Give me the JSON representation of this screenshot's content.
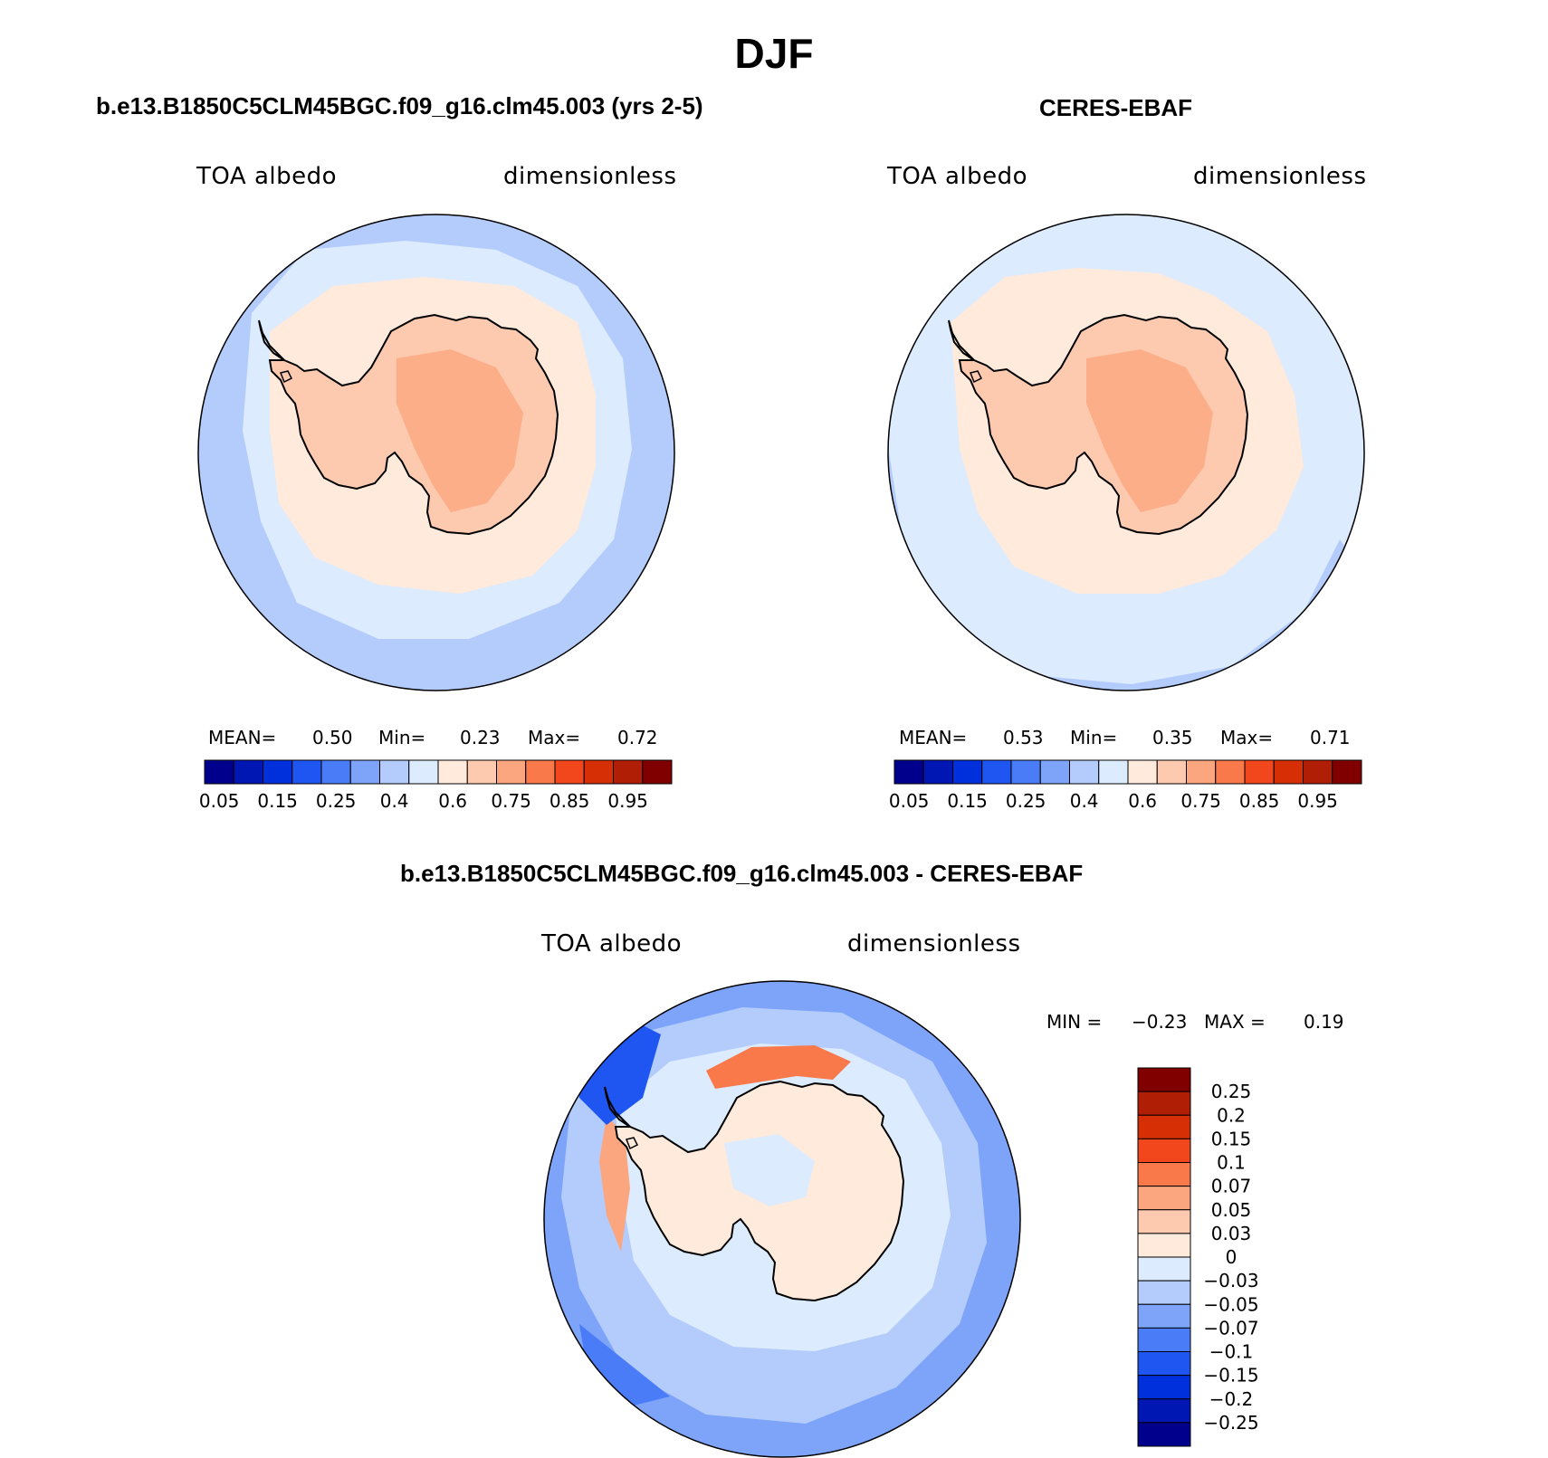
{
  "figure": {
    "title": "DJF",
    "panels": [
      {
        "id": "model",
        "title": "b.e13.B1850C5CLM45BGC.f09_g16.clm45.003 (yrs 2-5)",
        "variable": "TOA albedo",
        "units": "dimensionless",
        "stats": [
          {
            "label": "MEAN=",
            "value": "0.50"
          },
          {
            "label": "Min=",
            "value": "0.23"
          },
          {
            "label": "Max=",
            "value": "0.72"
          }
        ]
      },
      {
        "id": "obs",
        "title": "CERES-EBAF",
        "variable": "TOA albedo",
        "units": "dimensionless",
        "stats": [
          {
            "label": "MEAN=",
            "value": "0.53"
          },
          {
            "label": "Min=",
            "value": "0.35"
          },
          {
            "label": "Max=",
            "value": "0.71"
          }
        ]
      }
    ],
    "difference": {
      "title": "b.e13.B1850C5CLM45BGC.f09_g16.clm45.003 - CERES-EBAF",
      "variable": "TOA albedo",
      "units": "dimensionless",
      "stats": [
        {
          "label": "MIN =",
          "value": "−0.23"
        },
        {
          "label": "MAX =",
          "value": "0.19"
        }
      ]
    }
  },
  "chart_data": [
    {
      "type": "heatmap",
      "projection": "south-polar-stereographic",
      "title": "b.e13.B1850C5CLM45BGC.f09_g16.clm45.003 (yrs 2-5)",
      "subtitle": "TOA albedo",
      "units": "dimensionless",
      "mean": 0.5,
      "min": 0.23,
      "max": 0.72,
      "colorbar": {
        "orientation": "horizontal",
        "colors": [
          "#00008c",
          "#0017b4",
          "#0030dc",
          "#1f55f0",
          "#4a7cf7",
          "#7ea4fa",
          "#b4ccfc",
          "#dcebfd",
          "#ffeadb",
          "#fdcab0",
          "#fba67e",
          "#f9794a",
          "#f2461c",
          "#d72f05",
          "#b01e05",
          "#800000"
        ],
        "tick_labels": [
          "0.05",
          "0.15",
          "0.25",
          "0.4",
          "0.6",
          "0.75",
          "0.85",
          "0.95"
        ],
        "tick_edges": [
          1,
          3,
          5,
          7,
          9,
          11,
          13,
          15
        ]
      },
      "regions": {
        "ocean": "#b4ccfc",
        "sea_ice_edge": "#dcebfd",
        "coastal_band": "#ffeadb",
        "continent": "#fdcab0",
        "interior": "#fba67e"
      }
    },
    {
      "type": "heatmap",
      "projection": "south-polar-stereographic",
      "title": "CERES-EBAF",
      "subtitle": "TOA albedo",
      "units": "dimensionless",
      "mean": 0.53,
      "min": 0.35,
      "max": 0.71,
      "colorbar": {
        "orientation": "horizontal",
        "colors": [
          "#00008c",
          "#0017b4",
          "#0030dc",
          "#1f55f0",
          "#4a7cf7",
          "#7ea4fa",
          "#b4ccfc",
          "#dcebfd",
          "#ffeadb",
          "#fdcab0",
          "#fba67e",
          "#f9794a",
          "#f2461c",
          "#d72f05",
          "#b01e05",
          "#800000"
        ],
        "tick_labels": [
          "0.05",
          "0.15",
          "0.25",
          "0.4",
          "0.6",
          "0.75",
          "0.85",
          "0.95"
        ],
        "tick_edges": [
          1,
          3,
          5,
          7,
          9,
          11,
          13,
          15
        ]
      },
      "regions": {
        "ocean": "#dcebfd",
        "sea_ice_edge": "#dcebfd",
        "coastal_band": "#ffeadb",
        "continent": "#fdcab0",
        "interior": "#fba67e"
      }
    },
    {
      "type": "heatmap",
      "projection": "south-polar-stereographic",
      "title": "b.e13.B1850C5CLM45BGC.f09_g16.clm45.003 - CERES-EBAF",
      "subtitle": "TOA albedo",
      "units": "dimensionless",
      "min": -0.23,
      "max": 0.19,
      "colorbar": {
        "orientation": "vertical",
        "colors_top_to_bottom": [
          "#800000",
          "#b01e05",
          "#d72f05",
          "#f2461c",
          "#f9794a",
          "#fba67e",
          "#fdcab0",
          "#ffeadb",
          "#dcebfd",
          "#b4ccfc",
          "#7ea4fa",
          "#4a7cf7",
          "#1f55f0",
          "#0030dc",
          "#0017b4",
          "#00008c"
        ],
        "tick_labels_top_to_bottom": [
          "0.25",
          "0.2",
          "0.15",
          "0.1",
          "0.07",
          "0.05",
          "0.03",
          "0",
          "−0.03",
          "−0.05",
          "−0.07",
          "−0.1",
          "−0.15",
          "−0.2",
          "−0.25"
        ]
      },
      "regions": {
        "ocean": "#7ea4fa",
        "ice_ring": "#b4ccfc",
        "ross_anom": "#f9794a",
        "continent": "#ffeadb",
        "interior": "#dcebfd"
      }
    }
  ]
}
